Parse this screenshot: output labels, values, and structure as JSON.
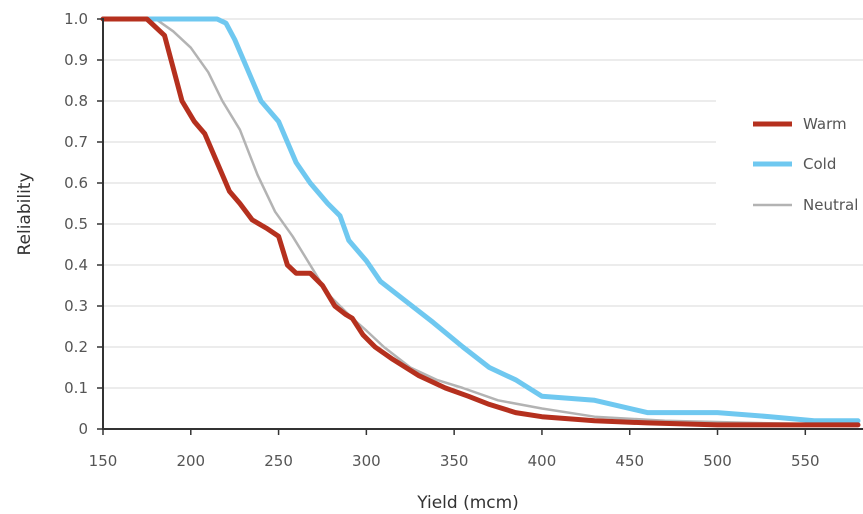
{
  "chart_data": {
    "type": "line",
    "title": "",
    "xlabel": "Yield (mcm)",
    "ylabel": "Reliability",
    "xlim": [
      150,
      580
    ],
    "ylim": [
      0,
      1.0
    ],
    "xticks": [
      150,
      200,
      250,
      300,
      350,
      400,
      450,
      500,
      550
    ],
    "yticks": [
      0,
      0.1,
      0.2,
      0.3,
      0.4,
      0.5,
      0.6,
      0.7,
      0.8,
      0.9,
      1.0
    ],
    "ytick_labels": [
      "0",
      "0.1",
      "0.2",
      "0.3",
      "0.4",
      "0.5",
      "0.6",
      "0.7",
      "0.8",
      "0.9",
      "1.0"
    ],
    "grid": "horizontal",
    "legend_position": "right",
    "series": [
      {
        "name": "Warm",
        "color": "#b5301e",
        "width": 5,
        "x": [
          150,
          175,
          185,
          195,
          202,
          208,
          215,
          222,
          228,
          235,
          243,
          250,
          255,
          260,
          268,
          275,
          282,
          288,
          292,
          298,
          305,
          315,
          330,
          345,
          358,
          370,
          385,
          400,
          415,
          430,
          460,
          500,
          550,
          580
        ],
        "y": [
          1.0,
          1.0,
          0.96,
          0.8,
          0.75,
          0.72,
          0.65,
          0.58,
          0.55,
          0.51,
          0.49,
          0.47,
          0.4,
          0.38,
          0.38,
          0.35,
          0.3,
          0.28,
          0.27,
          0.23,
          0.2,
          0.17,
          0.13,
          0.1,
          0.08,
          0.06,
          0.04,
          0.03,
          0.025,
          0.02,
          0.015,
          0.01,
          0.01,
          0.01
        ]
      },
      {
        "name": "Cold",
        "color": "#6fc8f0",
        "width": 5,
        "x": [
          150,
          215,
          220,
          225,
          232,
          240,
          250,
          260,
          268,
          278,
          285,
          290,
          300,
          308,
          320,
          338,
          355,
          370,
          385,
          400,
          430,
          460,
          500,
          530,
          555,
          580
        ],
        "y": [
          1.0,
          1.0,
          0.99,
          0.95,
          0.88,
          0.8,
          0.75,
          0.65,
          0.6,
          0.55,
          0.52,
          0.46,
          0.41,
          0.36,
          0.32,
          0.26,
          0.2,
          0.15,
          0.12,
          0.08,
          0.07,
          0.04,
          0.04,
          0.03,
          0.02,
          0.02
        ]
      },
      {
        "name": "Neutral",
        "color": "#b3b3b3",
        "width": 2.5,
        "x": [
          150,
          180,
          190,
          200,
          210,
          218,
          228,
          238,
          248,
          258,
          268,
          278,
          285,
          292,
          300,
          310,
          325,
          340,
          355,
          375,
          400,
          430,
          470,
          520,
          580
        ],
        "y": [
          1.0,
          1.0,
          0.97,
          0.93,
          0.87,
          0.8,
          0.73,
          0.62,
          0.53,
          0.47,
          0.4,
          0.33,
          0.3,
          0.27,
          0.24,
          0.2,
          0.15,
          0.12,
          0.1,
          0.07,
          0.05,
          0.03,
          0.02,
          0.015,
          0.01
        ]
      }
    ]
  }
}
